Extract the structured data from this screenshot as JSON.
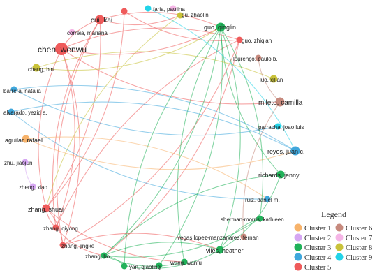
{
  "legend": {
    "title": "Legend",
    "clusters": [
      {
        "id": 1,
        "label": "Cluster 1",
        "color": "#F7B36B"
      },
      {
        "id": 2,
        "label": "Cluster 2",
        "color": "#D5A6F2"
      },
      {
        "id": 3,
        "label": "Cluster 3",
        "color": "#21B25A"
      },
      {
        "id": 4,
        "label": "Cluster 4",
        "color": "#3FA7DC"
      },
      {
        "id": 5,
        "label": "Cluster 5",
        "color": "#EF5B5B"
      },
      {
        "id": 6,
        "label": "Cluster 6",
        "color": "#C78A7E"
      },
      {
        "id": 7,
        "label": "Cluster 7",
        "color": "#F5B5E6"
      },
      {
        "id": 8,
        "label": "Cluster 8",
        "color": "#C9C23A"
      },
      {
        "id": 9,
        "label": "Cluster 9",
        "color": "#22D3E8"
      }
    ]
  },
  "network": {
    "nodes": [
      {
        "key": "faria",
        "label": "faria, paulina",
        "cluster": 9,
        "weight": 1
      },
      {
        "key": "pinkdot",
        "label": "",
        "cluster": 7,
        "weight": 1
      },
      {
        "key": "cuikai",
        "label": "cui, kai",
        "cluster": 5,
        "weight": 3
      },
      {
        "key": "redtop",
        "label": "",
        "cluster": 5,
        "weight": 1
      },
      {
        "key": "guzhaolin",
        "label": "gu, zhaolin",
        "cluster": 8,
        "weight": 1
      },
      {
        "key": "guoqinglin",
        "label": "guo, qinglin",
        "cluster": 3,
        "weight": 3
      },
      {
        "key": "correia",
        "label": "correia, mariana",
        "cluster": 7,
        "weight": 1
      },
      {
        "key": "guozhiqian",
        "label": "guo, zhiqian",
        "cluster": 5,
        "weight": 1
      },
      {
        "key": "chenwenwu",
        "label": "chen, wenwu",
        "cluster": 5,
        "weight": 5
      },
      {
        "key": "lourenco",
        "label": "lourenço, paulo b.",
        "cluster": 6,
        "weight": 1
      },
      {
        "key": "changbin",
        "label": "chang, bin",
        "cluster": 8,
        "weight": 2
      },
      {
        "key": "luoxilian",
        "label": "luo, xilian",
        "cluster": 8,
        "weight": 2
      },
      {
        "key": "barrera",
        "label": "barrera, natalia",
        "cluster": 4,
        "weight": 1
      },
      {
        "key": "mileto",
        "label": "mileto, camilla",
        "cluster": 6,
        "weight": 3
      },
      {
        "key": "alvarado",
        "label": "alvarado, yezid a.",
        "cluster": 4,
        "weight": 1
      },
      {
        "key": "parracha",
        "label": "parracha, joao luis",
        "cluster": 9,
        "weight": 1
      },
      {
        "key": "aguilar",
        "label": "aguilar, rafael",
        "cluster": 1,
        "weight": 2
      },
      {
        "key": "reyes",
        "label": "reyes, juan c.",
        "cluster": 4,
        "weight": 3
      },
      {
        "key": "zhujiaojun",
        "label": "zhu, jiaojun",
        "cluster": 2,
        "weight": 1
      },
      {
        "key": "richards",
        "label": "richards, jenny",
        "cluster": 3,
        "weight": 2
      },
      {
        "key": "zhengxiao",
        "label": "zheng, xiao",
        "cluster": 2,
        "weight": 1
      },
      {
        "key": "ruiz",
        "label": "ruiz, daniel m.",
        "cluster": 4,
        "weight": 1
      },
      {
        "key": "zhangshuai",
        "label": "zhang, shuai",
        "cluster": 5,
        "weight": 2
      },
      {
        "key": "sherman",
        "label": "sherman-morris, kathleen",
        "cluster": 3,
        "weight": 1
      },
      {
        "key": "zhangqiyong",
        "label": "zhang, qiyong",
        "cluster": 5,
        "weight": 1
      },
      {
        "key": "vegas",
        "label": "vegas lopez-manzanares, fernan",
        "cluster": 6,
        "weight": 1
      },
      {
        "key": "zhangjingke",
        "label": "zhang, jingke",
        "cluster": 5,
        "weight": 1
      },
      {
        "key": "viles",
        "label": "viles, heather",
        "cluster": 3,
        "weight": 2
      },
      {
        "key": "zhangbo",
        "label": "zhang, bo",
        "cluster": 3,
        "weight": 1
      },
      {
        "key": "wangwanfu",
        "label": "wang, wanfu",
        "cluster": 3,
        "weight": 1
      },
      {
        "key": "yanqiaoling",
        "label": "yan, qiaoling",
        "cluster": 3,
        "weight": 1
      },
      {
        "key": "greendot",
        "label": "",
        "cluster": 3,
        "weight": 1
      }
    ],
    "links": [
      [
        "cuikai",
        "chenwenwu"
      ],
      [
        "cuikai",
        "zhangshuai"
      ],
      [
        "cuikai",
        "zhangjingke"
      ],
      [
        "cuikai",
        "guoqinglin"
      ],
      [
        "cuikai",
        "zhangqiyong"
      ],
      [
        "redtop",
        "zhangshuai"
      ],
      [
        "redtop",
        "guozhiqian"
      ],
      [
        "chenwenwu",
        "guozhiqian"
      ],
      [
        "chenwenwu",
        "zhangshuai"
      ],
      [
        "chenwenwu",
        "zhangjingke"
      ],
      [
        "chenwenwu",
        "guoqinglin"
      ],
      [
        "chenwenwu",
        "zhangqiyong"
      ],
      [
        "chenwenwu",
        "mileto"
      ],
      [
        "guozhiqian",
        "zhangjingke"
      ],
      [
        "guozhiqian",
        "zhangqiyong"
      ],
      [
        "guoqinglin",
        "zhangbo"
      ],
      [
        "guoqinglin",
        "yanqiaoling"
      ],
      [
        "guoqinglin",
        "viles"
      ],
      [
        "guoqinglin",
        "wangwanfu"
      ],
      [
        "guoqinglin",
        "greendot"
      ],
      [
        "guoqinglin",
        "richards"
      ],
      [
        "guozhiqian",
        "zhangbo"
      ],
      [
        "changbin",
        "guoqinglin"
      ],
      [
        "changbin",
        "luoxilian"
      ],
      [
        "guzhaolin",
        "zhangshuai"
      ],
      [
        "barrera",
        "reyes"
      ],
      [
        "barrera",
        "parracha"
      ],
      [
        "alvarado",
        "reyes"
      ],
      [
        "alvarado",
        "ruiz"
      ],
      [
        "faria",
        "reyes"
      ],
      [
        "mileto",
        "vegas"
      ],
      [
        "mileto",
        "lourenco"
      ],
      [
        "aguilar",
        "reyes"
      ],
      [
        "aguilar",
        "ruiz"
      ],
      [
        "richards",
        "zhangbo"
      ],
      [
        "richards",
        "viles"
      ],
      [
        "sherman",
        "viles"
      ],
      [
        "sherman",
        "zhangbo"
      ],
      [
        "viles",
        "zhangbo"
      ],
      [
        "viles",
        "yanqiaoling"
      ],
      [
        "zhangbo",
        "wangwanfu"
      ],
      [
        "zhangbo",
        "yanqiaoling"
      ],
      [
        "zhangqiyong",
        "zhangbo"
      ],
      [
        "zhangjingke",
        "viles"
      ],
      [
        "zhangshuai",
        "wangwanfu"
      ],
      [
        "zhengxiao",
        "zhujiaojun"
      ],
      [
        "zhangshuai",
        "zhangqiyong"
      ],
      [
        "zhangshuai",
        "zhangjingke"
      ],
      [
        "cuikai",
        "guzhaolin"
      ],
      [
        "guoqinglin",
        "sherman"
      ]
    ]
  }
}
